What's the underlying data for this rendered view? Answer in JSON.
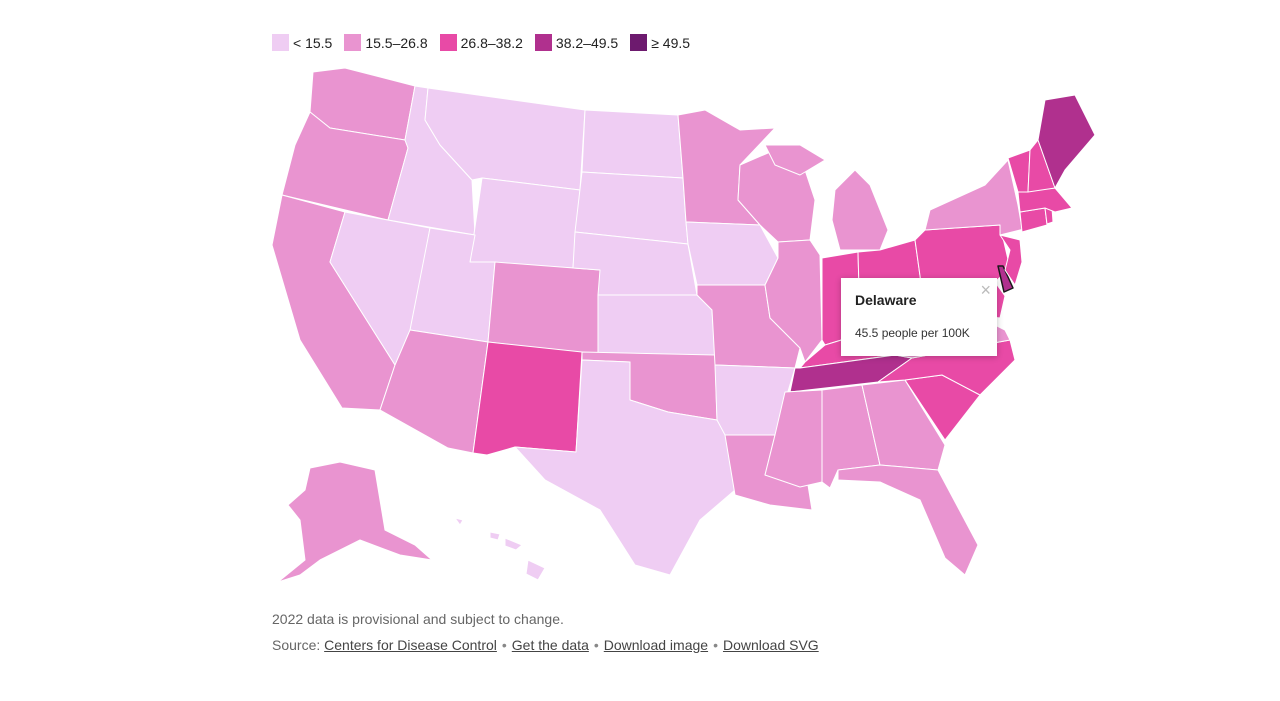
{
  "colors": {
    "c0": "#efcdf3",
    "c1": "#e994d0",
    "c2": "#e84aa6",
    "c3": "#b0308e",
    "c4": "#6d1a6e"
  },
  "legend": [
    {
      "label": "< 15.5",
      "color": "#efcdf3"
    },
    {
      "label": "15.5–26.8",
      "color": "#e994d0"
    },
    {
      "label": "26.8–38.2",
      "color": "#e84aa6"
    },
    {
      "label": "38.2–49.5",
      "color": "#b0308e"
    },
    {
      "label": "≥ 49.5",
      "color": "#6d1a6e"
    }
  ],
  "tooltip": {
    "title": "Delaware",
    "value": "45.5 people per 100K",
    "close": "×"
  },
  "states": {
    "WA": 1,
    "OR": 1,
    "CA": 1,
    "ID": 0,
    "NV": 0,
    "MT": 0,
    "WY": 0,
    "UT": 0,
    "AZ": 1,
    "CO": 1,
    "NM": 2,
    "ND": 0,
    "SD": 0,
    "NE": 0,
    "KS": 0,
    "OK": 1,
    "TX": 0,
    "MN": 1,
    "IA": 0,
    "MO": 1,
    "AR": 0,
    "LA": 1,
    "WI": 1,
    "IL": 1,
    "MI": 1,
    "IN": 2,
    "OH": 2,
    "KY": 2,
    "TN": 3,
    "MS": 1,
    "AL": 1,
    "GA": 1,
    "FL": 1,
    "SC": 2,
    "NC": 2,
    "VA": 1,
    "WV": 2,
    "PA": 2,
    "NY": 1,
    "VT": 2,
    "NH": 2,
    "ME": 3,
    "MA": 2,
    "CT": 2,
    "RI": 2,
    "NJ": 2,
    "DE": 3,
    "MD": 2,
    "AK": 1,
    "HI": 0
  },
  "footer": {
    "note": "2022 data is provisional and subject to change.",
    "source_label": "Source:",
    "links": [
      "Centers for Disease Control",
      "Get the data",
      "Download image",
      "Download SVG"
    ],
    "separator": "•"
  }
}
